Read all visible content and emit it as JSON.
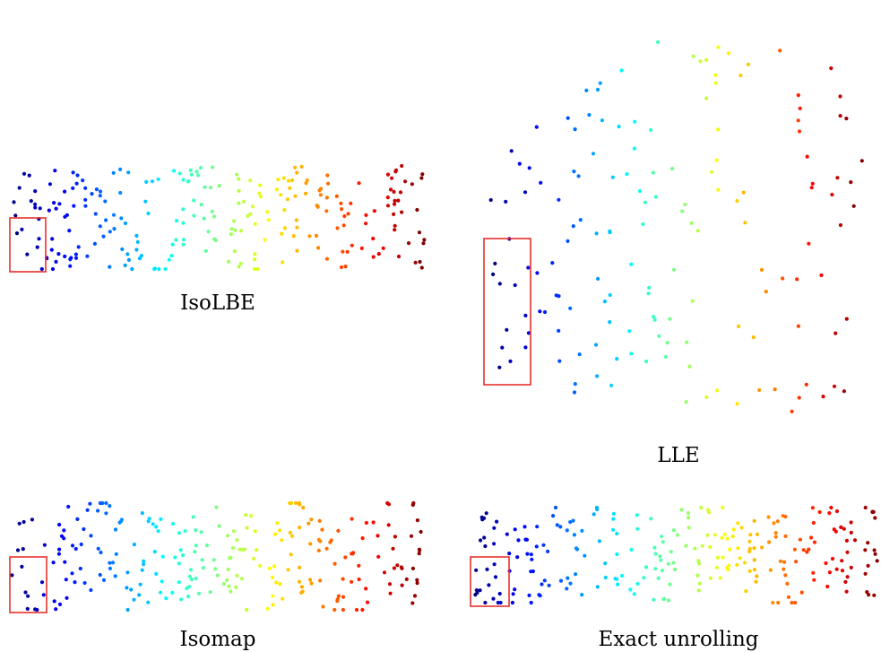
{
  "chart_data": [
    {
      "type": "scatter",
      "title": "IsoLBE",
      "color_scale": "jet",
      "color_by": "position along the unrolled manifold (blue → red)",
      "n_points": 240,
      "highlight_box_color": "#e8312b"
    },
    {
      "type": "scatter",
      "title": "LLE",
      "color_scale": "jet",
      "color_by": "position along the unrolled manifold (blue → red)",
      "n_points": 150,
      "highlight_box_color": "#e8312b"
    },
    {
      "type": "scatter",
      "title": "Isomap",
      "color_scale": "jet",
      "color_by": "position along the unrolled manifold (blue → red)",
      "n_points": 240,
      "highlight_box_color": "#e8312b"
    },
    {
      "type": "scatter",
      "title": "Exact unrolling",
      "color_scale": "jet",
      "color_by": "position along the unrolled manifold (blue → red)",
      "n_points": 240,
      "highlight_box_color": "#e8312b"
    }
  ]
}
